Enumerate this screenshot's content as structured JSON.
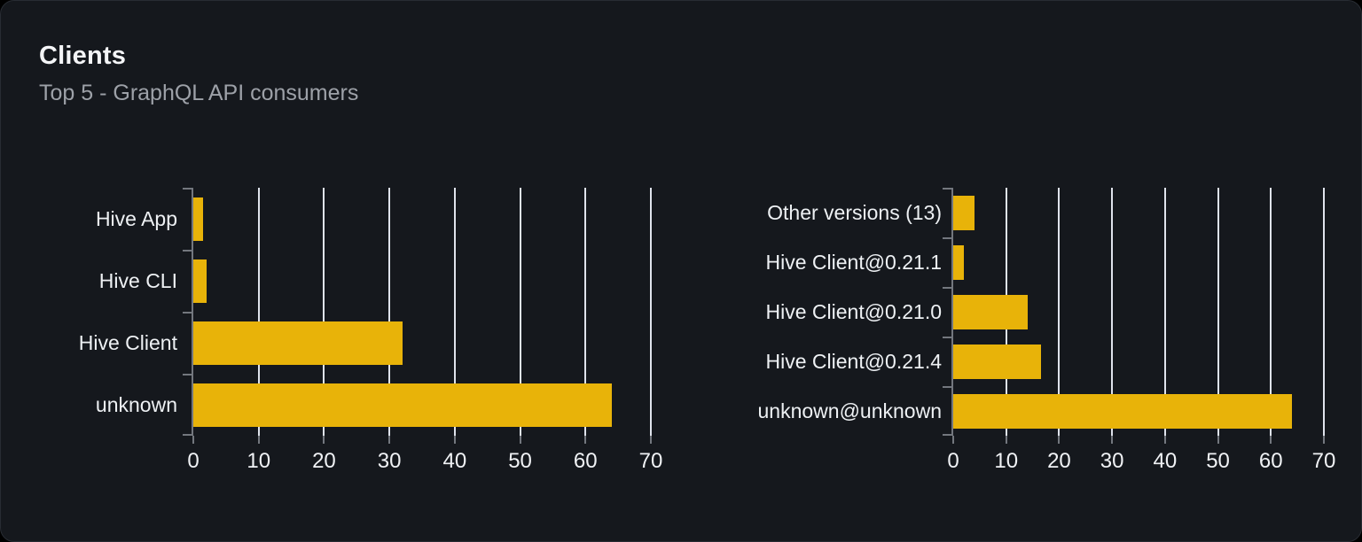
{
  "card": {
    "title": "Clients",
    "subtitle": "Top 5 - GraphQL API consumers"
  },
  "colors": {
    "bar": "#e8b309",
    "card_background": "#15181d",
    "gridline": "#dfe3ec",
    "axis": "#73777e"
  },
  "chart_data": [
    {
      "type": "bar",
      "orientation": "horizontal",
      "title": "",
      "xlabel": "",
      "ylabel": "",
      "categories": [
        "Hive App",
        "Hive CLI",
        "Hive Client",
        "unknown"
      ],
      "values": [
        1.5,
        2,
        32,
        64
      ],
      "xlim": [
        0,
        70
      ],
      "xticks": [
        0,
        10,
        20,
        30,
        40,
        50,
        60,
        70
      ],
      "grid": true,
      "legend": false,
      "bar_color": "#e8b309"
    },
    {
      "type": "bar",
      "orientation": "horizontal",
      "title": "",
      "xlabel": "",
      "ylabel": "",
      "categories": [
        "Other versions (13)",
        "Hive Client@0.21.1",
        "Hive Client@0.21.0",
        "Hive Client@0.21.4",
        "unknown@unknown"
      ],
      "values": [
        4,
        2,
        14,
        16.5,
        64
      ],
      "xlim": [
        0,
        70
      ],
      "xticks": [
        0,
        10,
        20,
        30,
        40,
        50,
        60,
        70
      ],
      "grid": true,
      "legend": false,
      "bar_color": "#e8b309"
    }
  ]
}
